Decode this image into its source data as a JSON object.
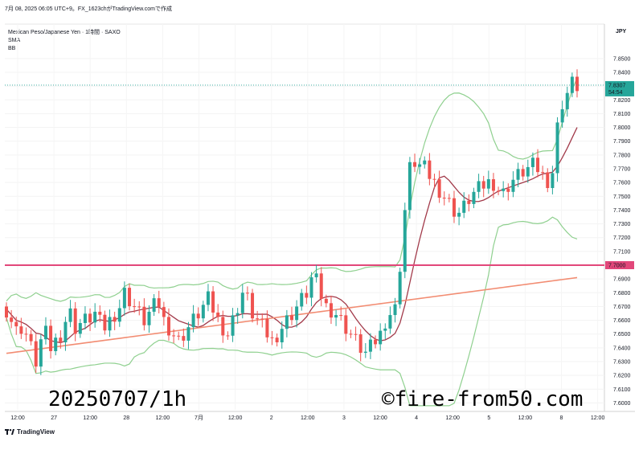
{
  "header": {
    "title_line": "7月 08, 2025 06:05 UTC+9。FX_1623chがTradingView.comで作成"
  },
  "legend": {
    "symbol": "Mexican Peso/Japanese Yen · 1時間 · SAXO",
    "indicator1": "SMA",
    "indicator2": "BB"
  },
  "price_axis": {
    "currency": "JPY",
    "last_price": "7.8307",
    "countdown": "54:54",
    "level_label": "7.7000"
  },
  "watermark": {
    "left": "20250707/1h",
    "right": "©fire-from50.com"
  },
  "footer": {
    "brand": "TradingView"
  },
  "colors": {
    "up": "#26a69a",
    "down": "#ef5350",
    "bb_band": "#8fd08f",
    "sma_short": "#a23a4a",
    "sma_long": "#f28c72",
    "level_line": "#e2477a",
    "last_price_bg": "#26a69a"
  },
  "chart_data": {
    "type": "candlestick",
    "ylim": [
      7.595,
      7.875
    ],
    "y_ticks": [
      "7.8500",
      "7.8400",
      "7.8300",
      "7.8200",
      "7.8100",
      "7.8000",
      "7.7900",
      "7.7800",
      "7.7700",
      "7.7600",
      "7.7500",
      "7.7400",
      "7.7300",
      "7.7200",
      "7.7100",
      "7.7000",
      "7.6900",
      "7.6800",
      "7.6700",
      "7.6600",
      "7.6500",
      "7.6400",
      "7.6300",
      "7.6200",
      "7.6100",
      "7.6000"
    ],
    "x_ticks": [
      "12:00",
      "27",
      "12:00",
      "28",
      "12:00",
      "7月",
      "12:00",
      "2",
      "12:00",
      "3",
      "12:00",
      "4",
      "12:00",
      "5",
      "12:00",
      "8",
      "12:00"
    ],
    "horizontal_level": 7.7,
    "last_price": 7.8307,
    "series_trend": {
      "close_approx": [
        7.668,
        7.66,
        7.652,
        7.655,
        7.65,
        7.64,
        7.63,
        7.645,
        7.65,
        7.64,
        7.645,
        7.65,
        7.66,
        7.665,
        7.655,
        7.658,
        7.66,
        7.662,
        7.665,
        7.658,
        7.655,
        7.66,
        7.665,
        7.67,
        7.68,
        7.675,
        7.67,
        7.665,
        7.66,
        7.665,
        7.67,
        7.672,
        7.66,
        7.655,
        7.65,
        7.645,
        7.65,
        7.655,
        7.66,
        7.665,
        7.67,
        7.675,
        7.668,
        7.66,
        7.655,
        7.65,
        7.66,
        7.67,
        7.68,
        7.675,
        7.665,
        7.66,
        7.655,
        7.65,
        7.645,
        7.65,
        7.655,
        7.66,
        7.665,
        7.67,
        7.675,
        7.68,
        7.69,
        7.688,
        7.678,
        7.67,
        7.668,
        7.665,
        7.66,
        7.655,
        7.65,
        7.645,
        7.64,
        7.636,
        7.64,
        7.645,
        7.65,
        7.66,
        7.665,
        7.668,
        7.7,
        7.74,
        7.77,
        7.775,
        7.772,
        7.77,
        7.765,
        7.76,
        7.755,
        7.75,
        7.745,
        7.74,
        7.738,
        7.742,
        7.748,
        7.752,
        7.755,
        7.758,
        7.76,
        7.76,
        7.755,
        7.752,
        7.758,
        7.762,
        7.765,
        7.768,
        7.77,
        7.772,
        7.77,
        7.765,
        7.762,
        7.768,
        7.8,
        7.818,
        7.825,
        7.832,
        7.83
      ]
    }
  }
}
